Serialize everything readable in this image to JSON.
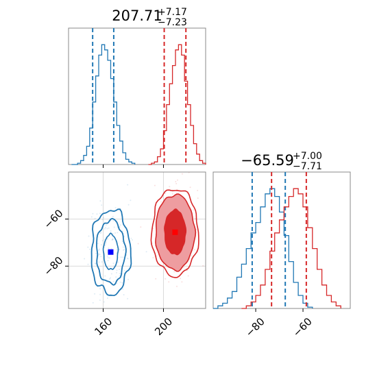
{
  "chart_data": {
    "type": "corner",
    "param_summaries": [
      {
        "median": "207.71",
        "plus": "+7.17",
        "minus": "−7.23"
      },
      {
        "median": "−65.59",
        "plus": "+7.00",
        "minus": "−7.71"
      }
    ],
    "x_param": {
      "range": [
        137,
        228
      ],
      "ticks": [
        160,
        200
      ],
      "tick_labels": [
        "160",
        "200"
      ]
    },
    "y_param": {
      "range": [
        -98,
        -40
      ],
      "ticks": [
        -80,
        -60
      ],
      "tick_labels": [
        "−80",
        "−60"
      ]
    },
    "grid": true,
    "series": [
      {
        "color": "#1f77b4",
        "marker_point": {
          "x": 165,
          "y": -74
        },
        "x_quantile_lines": [
          153,
          167
        ],
        "y_quantile_lines": [
          -81.5,
          -67.5
        ],
        "x_hist": [
          [
            139,
            0
          ],
          [
            143,
            1
          ],
          [
            145,
            3
          ],
          [
            147,
            7
          ],
          [
            149,
            14
          ],
          [
            151,
            28
          ],
          [
            153,
            48
          ],
          [
            155,
            68
          ],
          [
            157,
            84
          ],
          [
            159,
            92
          ],
          [
            161,
            88
          ],
          [
            163,
            80
          ],
          [
            165,
            66
          ],
          [
            167,
            48
          ],
          [
            169,
            30
          ],
          [
            171,
            18
          ],
          [
            173,
            9
          ],
          [
            175,
            4
          ],
          [
            177,
            2
          ],
          [
            179,
            1
          ],
          [
            181,
            0
          ]
        ],
        "y_hist": [
          [
            -98,
            0
          ],
          [
            -96,
            2
          ],
          [
            -94,
            4
          ],
          [
            -92,
            8
          ],
          [
            -90,
            13
          ],
          [
            -88,
            24
          ],
          [
            -86,
            34
          ],
          [
            -84,
            46
          ],
          [
            -82,
            58
          ],
          [
            -80,
            66
          ],
          [
            -78,
            78
          ],
          [
            -76,
            88
          ],
          [
            -74,
            92
          ],
          [
            -72,
            86
          ],
          [
            -70,
            74
          ],
          [
            -68,
            56
          ],
          [
            -66,
            36
          ],
          [
            -64,
            20
          ],
          [
            -62,
            10
          ],
          [
            -60,
            4
          ],
          [
            -58,
            1
          ],
          [
            -56,
            0
          ]
        ],
        "contours": [
          {
            "cx": 165,
            "cy": -74,
            "rx": 4.8,
            "ry": 7.5,
            "wobble": 0.06,
            "width": 1.6,
            "fill": "none"
          },
          {
            "cx": 165,
            "cy": -74,
            "rx": 9.5,
            "ry": 13.5,
            "wobble": 0.09,
            "width": 1.8,
            "fill": "none"
          },
          {
            "cx": 165,
            "cy": -74,
            "rx": 13,
            "ry": 18,
            "wobble": 0.11,
            "width": 1.8,
            "fill": "none"
          }
        ]
      },
      {
        "color": "#d62728",
        "marker_point": {
          "x": 207.7,
          "y": -65.6
        },
        "x_quantile_lines": [
          200.5,
          214.9
        ],
        "y_quantile_lines": [
          -73.3,
          -58.6
        ],
        "x_hist": [
          [
            190,
            0
          ],
          [
            192,
            1
          ],
          [
            194,
            2
          ],
          [
            196,
            6
          ],
          [
            198,
            12
          ],
          [
            200,
            26
          ],
          [
            202,
            46
          ],
          [
            204,
            62
          ],
          [
            206,
            76
          ],
          [
            208,
            88
          ],
          [
            210,
            92
          ],
          [
            212,
            84
          ],
          [
            214,
            64
          ],
          [
            216,
            46
          ],
          [
            218,
            30
          ],
          [
            220,
            16
          ],
          [
            222,
            8
          ],
          [
            224,
            3
          ],
          [
            226,
            1
          ],
          [
            228,
            0
          ]
        ],
        "y_hist": [
          [
            -86,
            0
          ],
          [
            -84,
            2
          ],
          [
            -82,
            5
          ],
          [
            -80,
            10
          ],
          [
            -78,
            18
          ],
          [
            -76,
            30
          ],
          [
            -74,
            44
          ],
          [
            -72,
            58
          ],
          [
            -70,
            68
          ],
          [
            -68,
            78
          ],
          [
            -66,
            86
          ],
          [
            -64,
            92
          ],
          [
            -62,
            88
          ],
          [
            -60,
            78
          ],
          [
            -58,
            62
          ],
          [
            -56,
            46
          ],
          [
            -54,
            30
          ],
          [
            -52,
            18
          ],
          [
            -50,
            10
          ],
          [
            -48,
            5
          ],
          [
            -46,
            2
          ],
          [
            -44,
            0
          ]
        ],
        "contours": [
          {
            "cx": 207.7,
            "cy": -65.6,
            "rx": 7,
            "ry": 9.5,
            "wobble": 0.05,
            "width": 1.4,
            "fill": "#d62728"
          },
          {
            "cx": 207.7,
            "cy": -65.6,
            "rx": 13,
            "ry": 16,
            "wobble": 0.05,
            "width": 1.6,
            "fill": "#ee9da0"
          },
          {
            "cx": 207.7,
            "cy": -65.6,
            "rx": 15.5,
            "ry": 18.5,
            "wobble": 0.07,
            "width": 1.6,
            "fill": "none"
          }
        ]
      }
    ]
  }
}
